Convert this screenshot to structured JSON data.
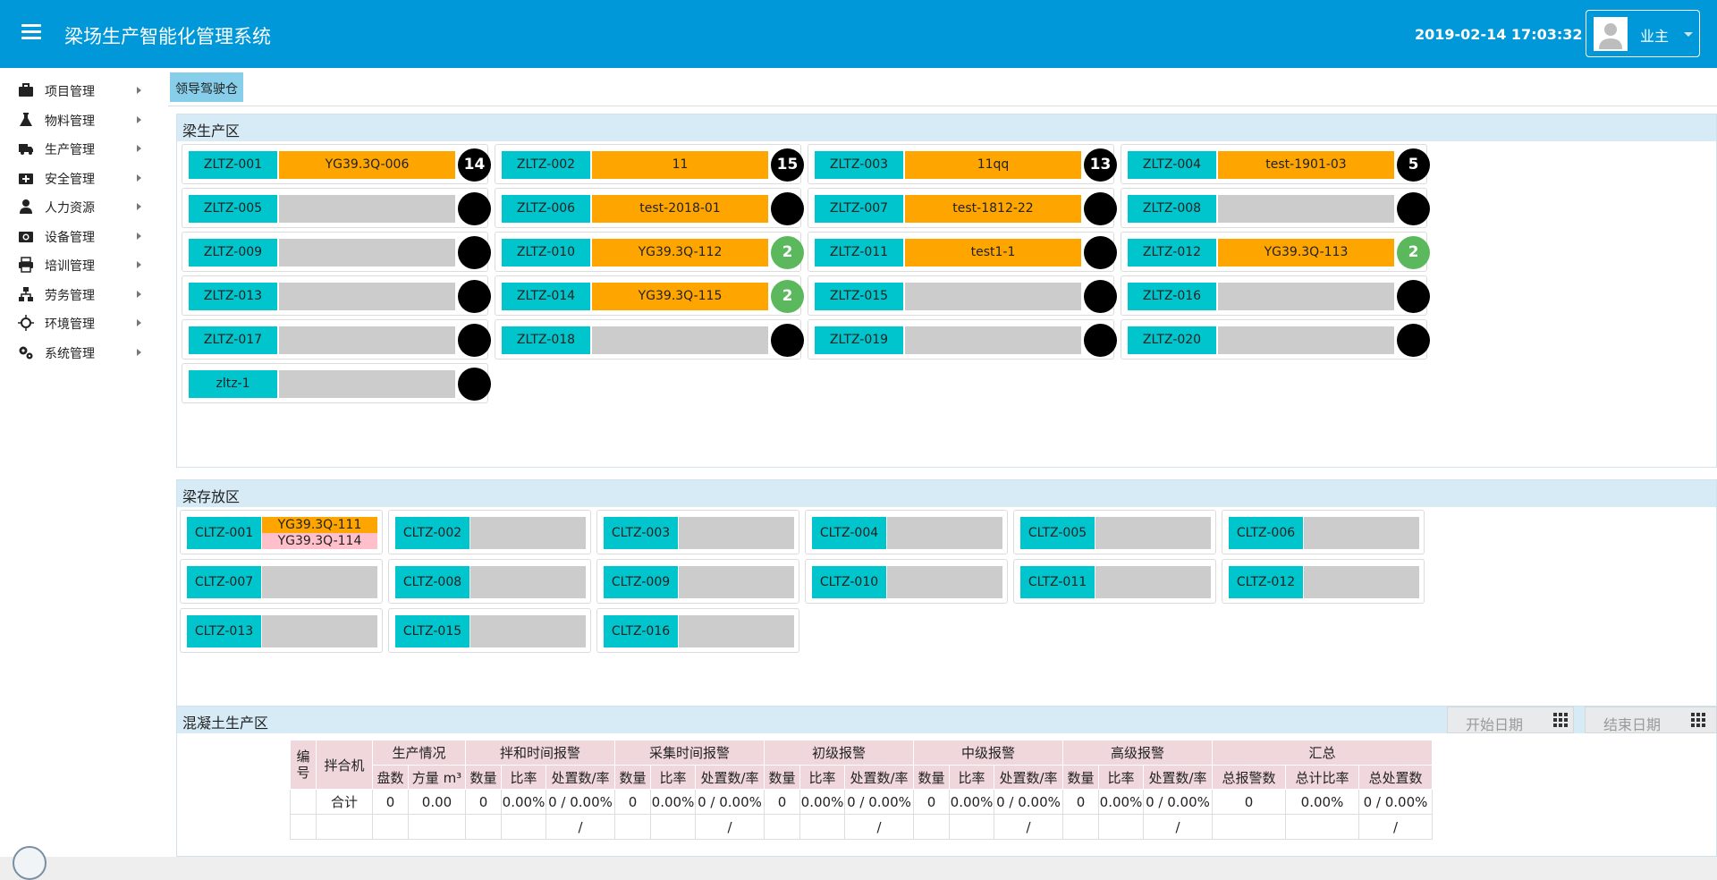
{
  "header": {
    "title": "梁场生产智能化管理系统",
    "datetime": "2019-02-14 17:03:32",
    "user_name": "业主",
    "colors": {
      "topbar": "#0098d9"
    }
  },
  "sidebar": {
    "items": [
      {
        "label": "项目管理",
        "icon": "briefcase-icon"
      },
      {
        "label": "物料管理",
        "icon": "flask-icon"
      },
      {
        "label": "生产管理",
        "icon": "truck-icon"
      },
      {
        "label": "安全管理",
        "icon": "first-aid-kit-icon"
      },
      {
        "label": "人力资源",
        "icon": "user-icon"
      },
      {
        "label": "设备管理",
        "icon": "camera-icon"
      },
      {
        "label": "培训管理",
        "icon": "printer-icon"
      },
      {
        "label": "劳务管理",
        "icon": "sitemap-icon"
      },
      {
        "label": "环境管理",
        "icon": "sun-icon"
      },
      {
        "label": "系统管理",
        "icon": "gears-icon"
      }
    ]
  },
  "tabs": {
    "active": "领导驾驶仓"
  },
  "production_area": {
    "title": "梁生产区",
    "colors": {
      "code": "#00c5cd",
      "active_bar": "#ffa500",
      "idle_bar": "#cccccc",
      "badge": "#000000",
      "badge_green": "#5cb85c"
    },
    "pedestals": [
      {
        "code": "ZLTZ-001",
        "beam": "YG39.3Q-006",
        "count": "14",
        "active": true,
        "green": false
      },
      {
        "code": "ZLTZ-002",
        "beam": "11",
        "count": "15",
        "active": true,
        "green": false
      },
      {
        "code": "ZLTZ-003",
        "beam": "11qq",
        "count": "13",
        "active": true,
        "green": false
      },
      {
        "code": "ZLTZ-004",
        "beam": "test-1901-03",
        "count": "5",
        "active": true,
        "green": false
      },
      {
        "code": "ZLTZ-005",
        "beam": "",
        "count": "",
        "active": false,
        "green": false
      },
      {
        "code": "ZLTZ-006",
        "beam": "test-2018-01",
        "count": "",
        "active": true,
        "green": false
      },
      {
        "code": "ZLTZ-007",
        "beam": "test-1812-22",
        "count": "",
        "active": true,
        "green": false
      },
      {
        "code": "ZLTZ-008",
        "beam": "",
        "count": "",
        "active": false,
        "green": false
      },
      {
        "code": "ZLTZ-009",
        "beam": "",
        "count": "",
        "active": false,
        "green": false
      },
      {
        "code": "ZLTZ-010",
        "beam": "YG39.3Q-112",
        "count": "2",
        "active": true,
        "green": true
      },
      {
        "code": "ZLTZ-011",
        "beam": "test1-1",
        "count": "",
        "active": true,
        "green": false
      },
      {
        "code": "ZLTZ-012",
        "beam": "YG39.3Q-113",
        "count": "2",
        "active": true,
        "green": true
      },
      {
        "code": "ZLTZ-013",
        "beam": "",
        "count": "",
        "active": false,
        "green": false
      },
      {
        "code": "ZLTZ-014",
        "beam": "YG39.3Q-115",
        "count": "2",
        "active": true,
        "green": true
      },
      {
        "code": "ZLTZ-015",
        "beam": "",
        "count": "",
        "active": false,
        "green": false
      },
      {
        "code": "ZLTZ-016",
        "beam": "",
        "count": "",
        "active": false,
        "green": false
      },
      {
        "code": "ZLTZ-017",
        "beam": "",
        "count": "",
        "active": false,
        "green": false
      },
      {
        "code": "ZLTZ-018",
        "beam": "",
        "count": "",
        "active": false,
        "green": false
      },
      {
        "code": "ZLTZ-019",
        "beam": "",
        "count": "",
        "active": false,
        "green": false
      },
      {
        "code": "ZLTZ-020",
        "beam": "",
        "count": "",
        "active": false,
        "green": false
      },
      {
        "code": "zltz-1",
        "beam": "",
        "count": "",
        "active": false,
        "green": false
      }
    ]
  },
  "storage_area": {
    "title": "梁存放区",
    "colors": {
      "orange": "#ffa500",
      "pink": "#ffc0cb"
    },
    "pedestals": [
      {
        "code": "CLTZ-001",
        "beams": [
          "YG39.3Q-111",
          "YG39.3Q-114"
        ]
      },
      {
        "code": "CLTZ-002",
        "beams": []
      },
      {
        "code": "CLTZ-003",
        "beams": []
      },
      {
        "code": "CLTZ-004",
        "beams": []
      },
      {
        "code": "CLTZ-005",
        "beams": []
      },
      {
        "code": "CLTZ-006",
        "beams": []
      },
      {
        "code": "CLTZ-007",
        "beams": []
      },
      {
        "code": "CLTZ-008",
        "beams": []
      },
      {
        "code": "CLTZ-009",
        "beams": []
      },
      {
        "code": "CLTZ-010",
        "beams": []
      },
      {
        "code": "CLTZ-011",
        "beams": []
      },
      {
        "code": "CLTZ-012",
        "beams": []
      },
      {
        "code": "CLTZ-013",
        "beams": []
      },
      {
        "code": "CLTZ-015",
        "beams": []
      },
      {
        "code": "CLTZ-016",
        "beams": []
      }
    ]
  },
  "concrete_area": {
    "title": "混凝土生产区",
    "start_date_placeholder": "开始日期",
    "end_date_placeholder": "结束日期",
    "table": {
      "header1": {
        "id": "编号",
        "mixer": "拌合机",
        "production": "生产情况",
        "mix_time_alarm": "拌和时间报警",
        "collect_time_alarm": "采集时间报警",
        "level1_alarm": "初级报警",
        "level2_alarm": "中级报警",
        "level3_alarm": "高级报警",
        "summary": "汇总"
      },
      "header2": {
        "batches": "盘数",
        "volume": "方量 m³",
        "count": "数量",
        "rate": "比率",
        "handled": "处置数/率",
        "total_alarms": "总报警数",
        "total_rate": "总计比率",
        "total_handled": "总处置数"
      },
      "total_row": [
        "",
        "合计",
        "0",
        "0.00",
        "0",
        "0.00%",
        "0 / 0.00%",
        "0",
        "0.00%",
        "0 / 0.00%",
        "0",
        "0.00%",
        "0 / 0.00%",
        "0",
        "0.00%",
        "0 / 0.00%",
        "0",
        "0.00%",
        "0 / 0.00%",
        "0",
        "0.00%",
        "0 / 0.00%"
      ],
      "blank_row": [
        "",
        "",
        "",
        "",
        "",
        "",
        "/",
        "",
        "",
        "/",
        "",
        "",
        "/",
        "",
        "",
        "/",
        "",
        "",
        "/",
        "",
        "",
        "/"
      ]
    }
  }
}
